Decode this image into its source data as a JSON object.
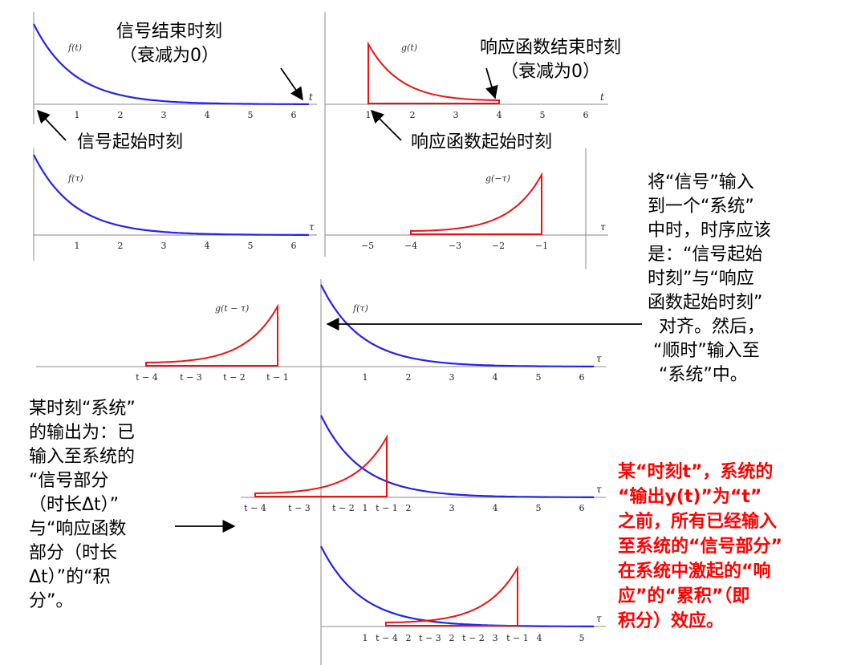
{
  "annotations": {
    "signal_end": "信号结束时刻\n（衰减为0）",
    "response_end": "响应函数结束时刻\n（衰减为0）",
    "signal_start": "信号起始时刻",
    "response_start": "响应函数起始时刻",
    "align_note": "将“信号”输入\n到一个“系统”\n中时，时序应该\n是：“信号起始\n时刻”与“响应\n函数起始时刻”\n  对齐。然后，\n “顺时”输入至\n  “系统”中。",
    "output_note": "某时刻“系统”\n的输出为：已\n输入至系统的\n“信号部分\n（时长Δt）”\n与“响应函数\n部分（时长\nΔt）”的“积\n分”。",
    "red_note": "某“时刻t”，系统的\n“输出y(t)”为“t”\n之前，所有已经输入\n至系统的“信号部分”\n在系统中激起的“响\n应”的“累积”（即\n积分）效应。"
  },
  "colors": {
    "signal": "#2222ee",
    "response": "#ee1111",
    "axis": "#888888",
    "red_text": "#ff0000"
  },
  "chart_data": [
    {
      "type": "line",
      "function_label": "f(t)",
      "xlabel": "t",
      "ticks": [
        "1",
        "2",
        "3",
        "4",
        "5",
        "6"
      ],
      "series": [
        {
          "name": "f(t)",
          "curve": "exponential decay from t=0 to t≈6.3",
          "color": "#2222ee"
        }
      ]
    },
    {
      "type": "line",
      "function_label": "g(t)",
      "xlabel": "t",
      "ticks": [
        "1",
        "2",
        "3",
        "4",
        "5",
        "6"
      ],
      "series": [
        {
          "name": "g(t)",
          "curve": "decaying triangle-like pulse from t=1 to t=4",
          "color": "#ee1111"
        }
      ]
    },
    {
      "type": "line",
      "function_label": "f(τ)",
      "xlabel": "τ",
      "ticks": [
        "1",
        "2",
        "3",
        "4",
        "5",
        "6"
      ],
      "series": [
        {
          "name": "f(τ)",
          "curve": "exponential decay from τ=0",
          "color": "#2222ee"
        }
      ]
    },
    {
      "type": "line",
      "function_label": "g(−τ)",
      "xlabel": "τ",
      "ticks": [
        "−5",
        "−4",
        "−3",
        "−2",
        "−1"
      ],
      "series": [
        {
          "name": "g(−τ)",
          "curve": "time-reversed pulse from τ=−4 to τ=−1",
          "color": "#ee1111"
        }
      ]
    },
    {
      "type": "line",
      "labels": [
        "g(t − τ)",
        "f(τ)"
      ],
      "xlabel": "τ",
      "ticks": [
        "t − 4",
        "t − 3",
        "t − 2",
        "t − 1",
        "1",
        "2",
        "3",
        "4",
        "5",
        "6"
      ]
    },
    {
      "type": "line",
      "xlabel": "τ",
      "ticks": [
        "t − 4",
        "t − 3",
        "t − 2",
        "1",
        "t − 1",
        "2",
        "3",
        "4",
        "5",
        "6"
      ]
    },
    {
      "type": "line",
      "xlabel": "τ",
      "ticks": [
        "1",
        "t − 4",
        "2",
        "t − 3",
        "2",
        "t − 2",
        "3",
        "t − 1",
        "4",
        "5"
      ]
    }
  ]
}
